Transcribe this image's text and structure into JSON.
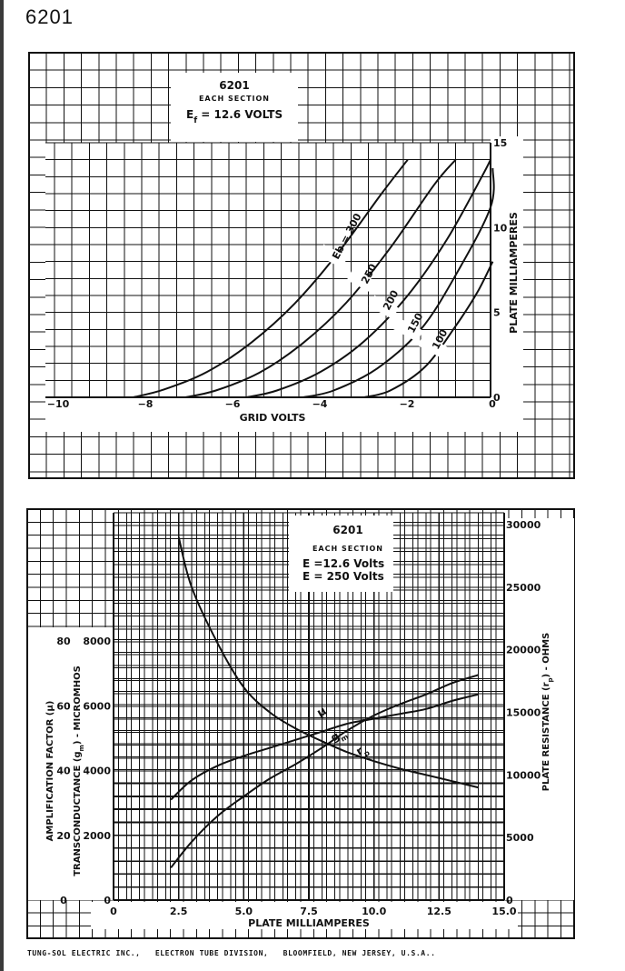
{
  "page": {
    "title": "6201",
    "footer": "TUNG-SOL ELECTRIC INC.,   ELECTRON TUBE DIVISION,   BLOOMFIELD, NEW JERSEY, U.S.A.."
  },
  "chart_data": [
    {
      "type": "line",
      "box": {
        "title": "6201",
        "subtitle": "EACH SECTION",
        "line1": "E<sub>f</sub> = 12.6 VOLTS",
        "line1_text": "Ef = 12.6 VOLTS"
      },
      "xlabel": "GRID VOLTS",
      "ylabel": "PLATE MILLIAMPERES",
      "xlim": [
        -10,
        0
      ],
      "ylim": [
        0,
        15
      ],
      "x_ticks": [
        {
          "value": -10,
          "label": "−10"
        },
        {
          "value": -8,
          "label": "−8"
        },
        {
          "value": -6,
          "label": "−6"
        },
        {
          "value": -4,
          "label": "−4"
        },
        {
          "value": -2,
          "label": "−2"
        },
        {
          "value": 0,
          "label": "0"
        }
      ],
      "y_ticks": [
        {
          "value": 15,
          "label": "15"
        },
        {
          "value": 10,
          "label": "10"
        },
        {
          "value": 5,
          "label": "5"
        },
        {
          "value": 0,
          "label": "0"
        }
      ],
      "series": [
        {
          "name": "Eb = 300",
          "label": "Eb = 300",
          "points": [
            [
              -8.2,
              0
            ],
            [
              -7.5,
              0.45
            ],
            [
              -6.5,
              1.5
            ],
            [
              -5.5,
              3.2
            ],
            [
              -4.5,
              5.5
            ],
            [
              -3.5,
              8.5
            ],
            [
              -2.5,
              12.0
            ],
            [
              -1.9,
              14.0
            ]
          ]
        },
        {
          "name": "250",
          "label": "250",
          "points": [
            [
              -7.0,
              0
            ],
            [
              -6.3,
              0.4
            ],
            [
              -5.3,
              1.45
            ],
            [
              -4.3,
              3.2
            ],
            [
              -3.3,
              5.6
            ],
            [
              -2.3,
              8.8
            ],
            [
              -1.3,
              12.5
            ],
            [
              -0.8,
              14.0
            ]
          ]
        },
        {
          "name": "200",
          "label": "200",
          "points": [
            [
              -5.6,
              0
            ],
            [
              -4.9,
              0.4
            ],
            [
              -3.9,
              1.5
            ],
            [
              -2.9,
              3.3
            ],
            [
              -1.9,
              6.0
            ],
            [
              -1.0,
              9.3
            ],
            [
              -0.2,
              13.0
            ],
            [
              0,
              14.0
            ]
          ]
        },
        {
          "name": "150",
          "label": "150",
          "points": [
            [
              -4.3,
              0
            ],
            [
              -3.6,
              0.4
            ],
            [
              -2.6,
              1.7
            ],
            [
              -1.6,
              4.0
            ],
            [
              -0.8,
              7.2
            ],
            [
              0,
              11.2
            ],
            [
              0.05,
              13.5
            ]
          ]
        },
        {
          "name": "100",
          "label": "100",
          "points": [
            [
              -2.9,
              0
            ],
            [
              -2.3,
              0.4
            ],
            [
              -1.5,
              1.8
            ],
            [
              -0.8,
              4.2
            ],
            [
              -0.3,
              6.2
            ],
            [
              0.05,
              8.0
            ]
          ]
        }
      ]
    },
    {
      "type": "line",
      "box": {
        "title": "6201",
        "subtitle": "EACH SECTION",
        "line1": "E<sub>f</sub> =12.6 Volts",
        "line1_text": "Ef =12.6 Volts",
        "line2": "E<sub>b</sub> = 250 Volts",
        "line2_text": "Eb = 250 Volts"
      },
      "xlabel": "PLATE MILLIAMPERES",
      "ylabel_left_mu": "AMPLIFICATION FACTOR (μ)",
      "ylabel_left_gm": "TRANSCONDUCTANCE (g<tspan baseline-shift='sub' font-size='7'>m</tspan>) - MICROMHOS",
      "ylabel_left_gm_text": "TRANSCONDUCTANCE (gm) - MICROMHOS",
      "ylabel_right": "PLATE RESISTANCE (r<tspan baseline-shift='sub' font-size='7'>p</tspan>) - OHMS",
      "ylabel_right_text": "PLATE RESISTANCE (rp) - OHMS",
      "xlim": [
        0,
        15
      ],
      "x_ticks": [
        {
          "value": 0,
          "label": "0"
        },
        {
          "value": 2.5,
          "label": "2.5"
        },
        {
          "value": 5,
          "label": "5.0"
        },
        {
          "value": 7.5,
          "label": "7.5"
        },
        {
          "value": 10,
          "label": "10.0"
        },
        {
          "value": 12.5,
          "label": "12.5"
        },
        {
          "value": 15,
          "label": "15.0"
        }
      ],
      "mu_ticks": [
        {
          "value": 0,
          "label": "0"
        },
        {
          "value": 20,
          "label": "20"
        },
        {
          "value": 40,
          "label": "40"
        },
        {
          "value": 60,
          "label": "60"
        },
        {
          "value": 80,
          "label": "80"
        }
      ],
      "gm_ticks": [
        {
          "value": 0,
          "label": "0"
        },
        {
          "value": 2000,
          "label": "2000"
        },
        {
          "value": 4000,
          "label": "4000"
        },
        {
          "value": 6000,
          "label": "6000"
        },
        {
          "value": 8000,
          "label": "8000"
        }
      ],
      "rp_ticks": [
        {
          "value": 0,
          "label": "0"
        },
        {
          "value": 5000,
          "label": "5000"
        },
        {
          "value": 10000,
          "label": "10000"
        },
        {
          "value": 15000,
          "label": "15000"
        },
        {
          "value": 20000,
          "label": "20000"
        },
        {
          "value": 25000,
          "label": "25000"
        },
        {
          "value": 30000,
          "label": "30000"
        }
      ],
      "series": [
        {
          "name": "μ",
          "label": "μ",
          "axis": "mu",
          "points": [
            [
              2.2,
              31
            ],
            [
              3,
              37
            ],
            [
              4,
              41.5
            ],
            [
              5,
              44.5
            ],
            [
              6,
              47
            ],
            [
              7,
              49.5
            ],
            [
              8,
              52
            ],
            [
              9,
              54.5
            ],
            [
              10,
              56
            ],
            [
              11,
              57.5
            ],
            [
              12,
              59
            ],
            [
              13,
              61.5
            ],
            [
              14,
              63.5
            ]
          ]
        },
        {
          "name": "gm",
          "label": "g<tspan baseline-shift='sub' font-size='8'>m</tspan>",
          "label_text": "gm",
          "axis": "gm",
          "points": [
            [
              2.2,
              1000
            ],
            [
              3,
              1800
            ],
            [
              4,
              2600
            ],
            [
              5,
              3200
            ],
            [
              6,
              3750
            ],
            [
              7,
              4200
            ],
            [
              8,
              4700
            ],
            [
              9,
              5250
            ],
            [
              10,
              5700
            ],
            [
              11,
              6050
            ],
            [
              12,
              6350
            ],
            [
              13,
              6700
            ],
            [
              14,
              6950
            ]
          ]
        },
        {
          "name": "rp",
          "label": "r<tspan baseline-shift='sub' font-size='8'>p</tspan>",
          "label_text": "rp",
          "axis": "rp",
          "points": [
            [
              2.5,
              29000
            ],
            [
              3,
              25000
            ],
            [
              4,
              20500
            ],
            [
              5,
              17000
            ],
            [
              6,
              15000
            ],
            [
              7,
              13700
            ],
            [
              8,
              12700
            ],
            [
              9,
              11800
            ],
            [
              10,
              11100
            ],
            [
              11,
              10500
            ],
            [
              12,
              10000
            ],
            [
              13,
              9500
            ],
            [
              14,
              9000
            ]
          ]
        }
      ]
    }
  ]
}
